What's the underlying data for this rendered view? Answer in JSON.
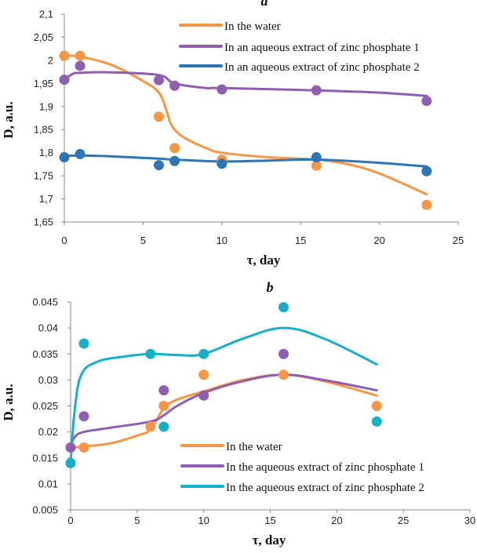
{
  "chart_data": [
    {
      "type": "scatter",
      "panel_label": "a",
      "xlabel": "τ, day",
      "ylabel": "D, a.u.",
      "xlim": [
        0,
        25
      ],
      "ylim": [
        1.65,
        2.1
      ],
      "x_ticks": [
        "0",
        "5",
        "10",
        "15",
        "20",
        "25"
      ],
      "y_ticks": [
        "1,65",
        "1,7",
        "1,75",
        "1,8",
        "1,85",
        "1,9",
        "1,95",
        "2",
        "2,05",
        "2,1"
      ],
      "grid": false,
      "legend_position": "top-right",
      "series": [
        {
          "name": "In the water",
          "color": "#F79646",
          "points": [
            [
              0,
              2.01
            ],
            [
              1,
              2.01
            ],
            [
              6,
              1.878
            ],
            [
              7,
              1.81
            ],
            [
              10,
              1.785
            ],
            [
              16,
              1.772
            ],
            [
              23,
              1.687
            ]
          ],
          "trend": [
            [
              0,
              2.01
            ],
            [
              1,
              2.008
            ],
            [
              3,
              1.99
            ],
            [
              5,
              1.955
            ],
            [
              6,
              1.93
            ],
            [
              6.5,
              1.89
            ],
            [
              6.8,
              1.86
            ],
            [
              7.5,
              1.835
            ],
            [
              9,
              1.81
            ],
            [
              10,
              1.8
            ],
            [
              13,
              1.79
            ],
            [
              16,
              1.785
            ],
            [
              18,
              1.775
            ],
            [
              20,
              1.755
            ],
            [
              23,
              1.71
            ]
          ]
        },
        {
          "name": "In an aqueous extract of zinc phosphate 1",
          "color": "#8E5FB0",
          "points": [
            [
              0,
              1.958
            ],
            [
              1,
              1.988
            ],
            [
              6,
              1.957
            ],
            [
              7,
              1.945
            ],
            [
              10,
              1.937
            ],
            [
              16,
              1.935
            ],
            [
              23,
              1.912
            ]
          ],
          "trend": [
            [
              0,
              1.958
            ],
            [
              0.5,
              1.97
            ],
            [
              1,
              1.973
            ],
            [
              3,
              1.974
            ],
            [
              6,
              1.968
            ],
            [
              7,
              1.95
            ],
            [
              9,
              1.94
            ],
            [
              10,
              1.94
            ],
            [
              16,
              1.935
            ],
            [
              20,
              1.93
            ],
            [
              23,
              1.923
            ]
          ]
        },
        {
          "name": "In an aqueous extract of zinc phosphate 2",
          "color": "#2E75B6",
          "points": [
            [
              0,
              1.79
            ],
            [
              1,
              1.797
            ],
            [
              6,
              1.773
            ],
            [
              7,
              1.782
            ],
            [
              10,
              1.776
            ],
            [
              16,
              1.79
            ],
            [
              23,
              1.76
            ]
          ],
          "trend": [
            [
              0,
              1.793
            ],
            [
              1,
              1.794
            ],
            [
              3,
              1.792
            ],
            [
              6,
              1.787
            ],
            [
              7,
              1.785
            ],
            [
              10,
              1.781
            ],
            [
              13,
              1.783
            ],
            [
              16,
              1.785
            ],
            [
              20,
              1.778
            ],
            [
              23,
              1.77
            ]
          ]
        }
      ]
    },
    {
      "type": "scatter",
      "panel_label": "b",
      "xlabel": "τ, day",
      "ylabel": "D, a.u.",
      "xlim": [
        0,
        30
      ],
      "ylim": [
        0.005,
        0.045
      ],
      "x_ticks": [
        "0",
        "5",
        "10",
        "15",
        "20",
        "25",
        "30"
      ],
      "y_ticks": [
        "0.005",
        "0.01",
        "0.015",
        "0.02",
        "0.025",
        "0.03",
        "0.035",
        "0.04",
        "0.045"
      ],
      "grid": false,
      "legend_position": "bottom-right",
      "series": [
        {
          "name": "In the water",
          "color": "#F79646",
          "points": [
            [
              0,
              0.017
            ],
            [
              1,
              0.017
            ],
            [
              6,
              0.021
            ],
            [
              7,
              0.025
            ],
            [
              10,
              0.031
            ],
            [
              16,
              0.031
            ],
            [
              23,
              0.025
            ]
          ],
          "trend": [
            [
              0,
              0.017
            ],
            [
              1,
              0.0172
            ],
            [
              3,
              0.0178
            ],
            [
              5,
              0.0193
            ],
            [
              6,
              0.0205
            ],
            [
              7,
              0.0245
            ],
            [
              8,
              0.0262
            ],
            [
              10,
              0.0278
            ],
            [
              13,
              0.03
            ],
            [
              16,
              0.031
            ],
            [
              19,
              0.0298
            ],
            [
              23,
              0.027
            ]
          ]
        },
        {
          "name": "In the aqueous extract of zinc phosphate 1",
          "color": "#8E5FB0",
          "points": [
            [
              0,
              0.017
            ],
            [
              1,
              0.023
            ],
            [
              7,
              0.028
            ],
            [
              10,
              0.027
            ],
            [
              16,
              0.035
            ]
          ],
          "trend": [
            [
              0,
              0.017
            ],
            [
              0.3,
              0.019
            ],
            [
              1,
              0.02
            ],
            [
              3,
              0.0208
            ],
            [
              6,
              0.022
            ],
            [
              7,
              0.0232
            ],
            [
              8,
              0.025
            ],
            [
              10,
              0.0275
            ],
            [
              13,
              0.0298
            ],
            [
              16,
              0.031
            ],
            [
              19,
              0.03
            ],
            [
              23,
              0.028
            ]
          ]
        },
        {
          "name": "In the aqueous extract of zinc phosphate 2",
          "color": "#17AFC8",
          "points": [
            [
              0,
              0.014
            ],
            [
              1,
              0.037
            ],
            [
              6,
              0.035
            ],
            [
              7,
              0.021
            ],
            [
              10,
              0.035
            ],
            [
              16,
              0.044
            ],
            [
              23,
              0.022
            ]
          ],
          "trend": [
            [
              0,
              0.014
            ],
            [
              0.3,
              0.024
            ],
            [
              0.8,
              0.031
            ],
            [
              2,
              0.0335
            ],
            [
              4,
              0.0345
            ],
            [
              6,
              0.035
            ],
            [
              8,
              0.0348
            ],
            [
              10,
              0.035
            ],
            [
              13,
              0.038
            ],
            [
              16,
              0.04
            ],
            [
              19,
              0.038
            ],
            [
              23,
              0.033
            ]
          ]
        }
      ]
    }
  ]
}
